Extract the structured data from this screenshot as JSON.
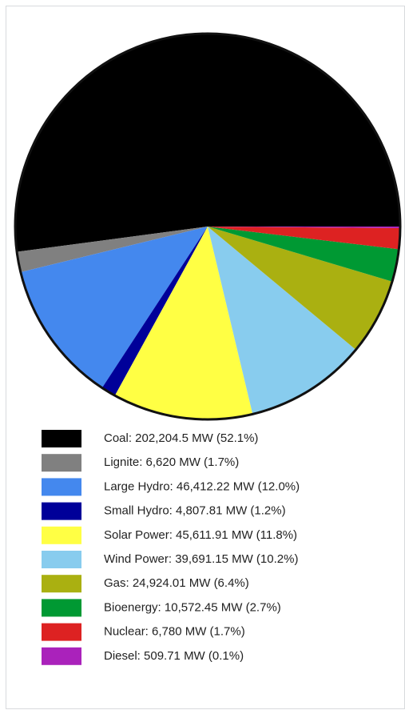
{
  "chart_data": {
    "type": "pie",
    "categories": [
      "Coal: 202,204.5 MW (52.1%)",
      "Lignite: 6,620 MW (1.7%)",
      "Large Hydro: 46,412.22 MW (12.0%)",
      "Small Hydro: 4,807.81 MW (1.2%)",
      "Solar Power: 45,611.91 MW (11.8%)",
      "Wind Power: 39,691.15 MW (10.2%)",
      "Gas: 24,924.01 MW (6.4%)",
      "Bioenergy: 10,572.45 MW (2.7%)",
      "Nuclear: 6,780 MW (1.7%)",
      "Diesel: 509.71 MW (0.1%)"
    ],
    "values": [
      202204.5,
      6620,
      46412.22,
      4807.81,
      45611.91,
      39691.15,
      24924.01,
      10572.45,
      6780,
      509.71
    ],
    "colors": [
      "#000000",
      "#808080",
      "#4488ee",
      "#000099",
      "#ffff44",
      "#88ccee",
      "#aab011",
      "#009933",
      "#dd2222",
      "#aa22bb"
    ]
  }
}
